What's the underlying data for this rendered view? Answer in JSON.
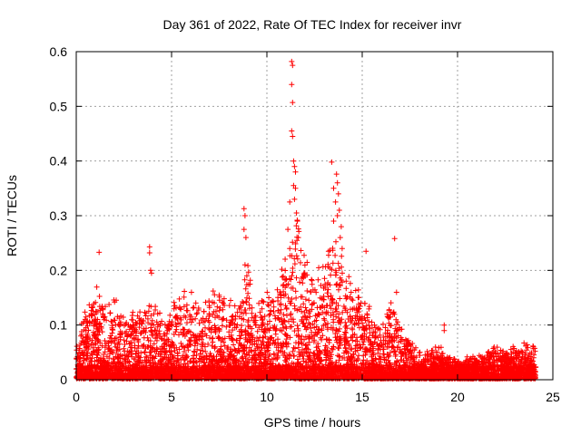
{
  "chart_data": {
    "type": "scatter",
    "title": "Day 361 of 2022, Rate Of TEC Index for receiver invr",
    "xlabel": "GPS time / hours",
    "ylabel": "ROTI / TECUs",
    "xlim": [
      0,
      25
    ],
    "ylim": [
      0,
      0.6
    ],
    "x_ticks": [
      "0",
      "5",
      "10",
      "15",
      "20",
      "25"
    ],
    "y_ticks": [
      "0",
      "0.1",
      "0.2",
      "0.3",
      "0.4",
      "0.5",
      "0.6"
    ],
    "grid": true,
    "marker": "plus",
    "color": "#ff0000",
    "envelope": {
      "x": [
        0,
        0.5,
        1,
        1.5,
        2,
        2.5,
        3,
        3.5,
        4,
        4.5,
        5,
        5.5,
        6,
        6.5,
        7,
        7.5,
        8,
        8.5,
        9,
        9.5,
        10,
        10.5,
        11,
        11.5,
        12,
        12.5,
        13,
        13.5,
        14,
        14.5,
        15,
        15.5,
        16,
        16.5,
        17,
        17.5,
        18,
        18.5,
        19,
        19.5,
        20,
        20.5,
        21,
        21.5,
        22,
        22.5,
        23,
        23.5,
        24
      ],
      "typical_max": [
        0.06,
        0.12,
        0.15,
        0.13,
        0.14,
        0.1,
        0.11,
        0.12,
        0.14,
        0.1,
        0.12,
        0.14,
        0.15,
        0.12,
        0.14,
        0.15,
        0.13,
        0.12,
        0.2,
        0.13,
        0.15,
        0.16,
        0.22,
        0.28,
        0.2,
        0.17,
        0.2,
        0.25,
        0.2,
        0.18,
        0.15,
        0.12,
        0.1,
        0.14,
        0.1,
        0.06,
        0.05,
        0.05,
        0.06,
        0.04,
        0.03,
        0.035,
        0.04,
        0.05,
        0.055,
        0.05,
        0.055,
        0.06,
        0.06
      ]
    },
    "outliers": [
      {
        "x": 1.2,
        "y": 0.233
      },
      {
        "x": 3.85,
        "y": 0.243
      },
      {
        "x": 3.85,
        "y": 0.232
      },
      {
        "x": 3.9,
        "y": 0.2
      },
      {
        "x": 3.95,
        "y": 0.195
      },
      {
        "x": 8.8,
        "y": 0.313
      },
      {
        "x": 8.85,
        "y": 0.3
      },
      {
        "x": 8.8,
        "y": 0.275
      },
      {
        "x": 8.9,
        "y": 0.26
      },
      {
        "x": 8.85,
        "y": 0.21
      },
      {
        "x": 8.95,
        "y": 0.19
      },
      {
        "x": 11.3,
        "y": 0.582
      },
      {
        "x": 11.35,
        "y": 0.575
      },
      {
        "x": 11.3,
        "y": 0.54
      },
      {
        "x": 11.35,
        "y": 0.507
      },
      {
        "x": 11.3,
        "y": 0.455
      },
      {
        "x": 11.35,
        "y": 0.445
      },
      {
        "x": 11.4,
        "y": 0.4
      },
      {
        "x": 11.45,
        "y": 0.39
      },
      {
        "x": 11.5,
        "y": 0.38
      },
      {
        "x": 11.4,
        "y": 0.355
      },
      {
        "x": 11.5,
        "y": 0.35
      },
      {
        "x": 11.45,
        "y": 0.33
      },
      {
        "x": 11.2,
        "y": 0.325
      },
      {
        "x": 11.55,
        "y": 0.305
      },
      {
        "x": 11.6,
        "y": 0.29
      },
      {
        "x": 11.1,
        "y": 0.275
      },
      {
        "x": 11.65,
        "y": 0.26
      },
      {
        "x": 11.2,
        "y": 0.24
      },
      {
        "x": 13.4,
        "y": 0.398
      },
      {
        "x": 13.65,
        "y": 0.376
      },
      {
        "x": 13.7,
        "y": 0.36
      },
      {
        "x": 13.5,
        "y": 0.35
      },
      {
        "x": 13.75,
        "y": 0.34
      },
      {
        "x": 13.6,
        "y": 0.325
      },
      {
        "x": 13.8,
        "y": 0.31
      },
      {
        "x": 13.7,
        "y": 0.3
      },
      {
        "x": 13.5,
        "y": 0.29
      },
      {
        "x": 13.9,
        "y": 0.28
      },
      {
        "x": 13.85,
        "y": 0.26
      },
      {
        "x": 13.95,
        "y": 0.24
      },
      {
        "x": 15.2,
        "y": 0.235
      },
      {
        "x": 16.7,
        "y": 0.258
      },
      {
        "x": 16.8,
        "y": 0.16
      },
      {
        "x": 19.3,
        "y": 0.1
      },
      {
        "x": 19.3,
        "y": 0.09
      }
    ]
  }
}
